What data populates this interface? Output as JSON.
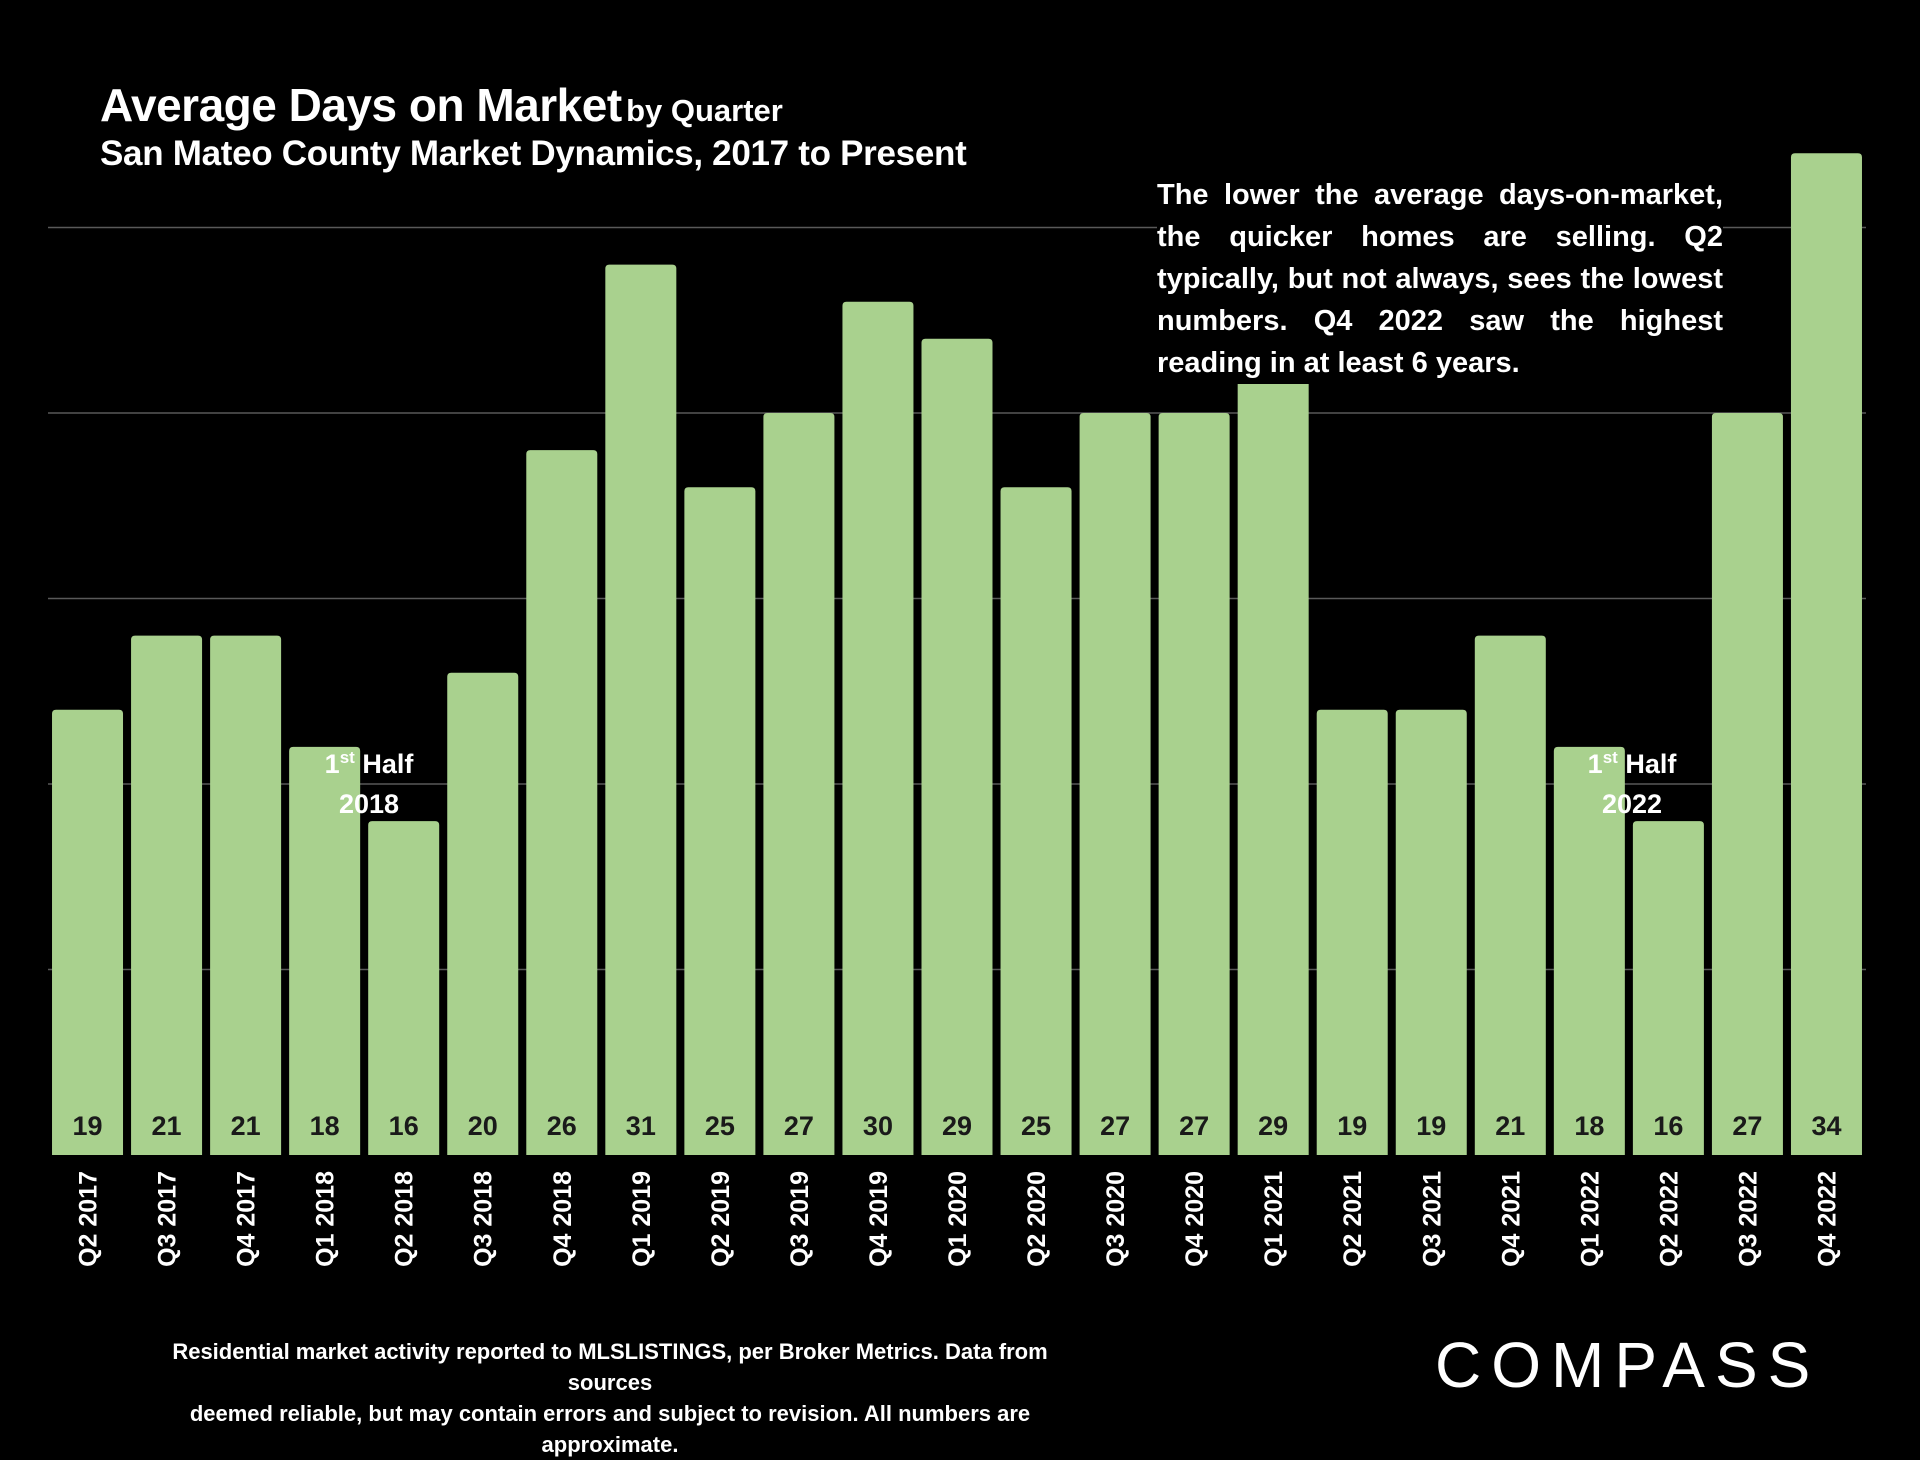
{
  "header": {
    "title": "Average Days on Market",
    "title_suffix": "by Quarter",
    "subtitle": "San Mateo County Market Dynamics, 2017 to Present"
  },
  "annotation": {
    "text": "The lower the average days-on-market, the quicker homes are selling. Q2 typically, but not always, sees the lowest numbers. Q4 2022 saw the highest reading in at least 6 years."
  },
  "half_labels": [
    {
      "prefix": "1",
      "sup": "st",
      "word": "Half",
      "year": "2018"
    },
    {
      "prefix": "1",
      "sup": "st",
      "word": "Half",
      "year": "2022"
    }
  ],
  "footer": {
    "line1": "Residential market activity reported to MLSLISTINGS, per Broker Metrics. Data from sources",
    "line2": "deemed reliable, but may contain errors and subject to revision. All numbers are approximate.",
    "logo": "COMPASS"
  },
  "colors": {
    "background": "#000000",
    "bar": "#a9d18e",
    "gridline": "#595959",
    "text": "#ffffff",
    "bar_label": "#1a1a1a"
  },
  "chart_data": {
    "type": "bar",
    "title": "Average Days on Market by Quarter",
    "subtitle": "San Mateo County Market Dynamics, 2017 to Present",
    "xlabel": "",
    "ylabel": "",
    "ylim": [
      7,
      37
    ],
    "gridlines": [
      12,
      17,
      22,
      27,
      32
    ],
    "categories": [
      "Q2 2017",
      "Q3 2017",
      "Q4 2017",
      "Q1 2018",
      "Q2 2018",
      "Q3 2018",
      "Q4 2018",
      "Q1 2019",
      "Q2 2019",
      "Q3 2019",
      "Q4 2019",
      "Q1 2020",
      "Q2 2020",
      "Q3 2020",
      "Q4 2020",
      "Q1 2021",
      "Q2 2021",
      "Q3 2021",
      "Q4 2021",
      "Q1 2022",
      "Q2 2022",
      "Q3 2022",
      "Q4 2022"
    ],
    "values": [
      19,
      21,
      21,
      18,
      16,
      20,
      26,
      31,
      25,
      27,
      30,
      29,
      25,
      27,
      27,
      29,
      19,
      19,
      21,
      18,
      16,
      27,
      34
    ]
  }
}
